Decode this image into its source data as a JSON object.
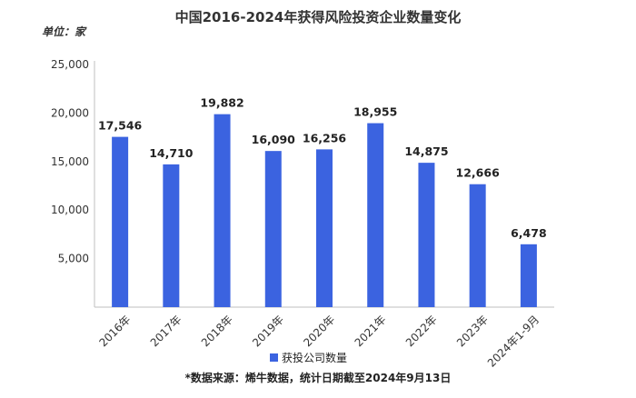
{
  "chart_data": {
    "type": "bar",
    "title": "中国2016-2024年获得风险投资企业数量变化",
    "unit_label": "单位：家",
    "categories": [
      "2016年",
      "2017年",
      "2018年",
      "2019年",
      "2020年",
      "2021年",
      "2022年",
      "2023年",
      "2024年1-9月"
    ],
    "series": [
      {
        "name": "获投公司数量",
        "values": [
          17546,
          14710,
          19882,
          16090,
          16256,
          18955,
          14875,
          12666,
          6478
        ],
        "value_labels": [
          "17,546",
          "14,710",
          "19,882",
          "16,090",
          "16,256",
          "18,955",
          "14,875",
          "12,666",
          "6,478"
        ]
      }
    ],
    "y_ticks": [
      5000,
      10000,
      15000,
      20000,
      25000
    ],
    "y_tick_labels": [
      "5,000",
      "10,000",
      "15,000",
      "20,000",
      "25,000"
    ],
    "ylim": [
      0,
      25000
    ],
    "bar_color": "#3b63e0",
    "grid": false,
    "legend_position": "bottom"
  },
  "footer": {
    "source": "*数据来源：烯牛数据，统计日期截至2024年9月13日"
  }
}
